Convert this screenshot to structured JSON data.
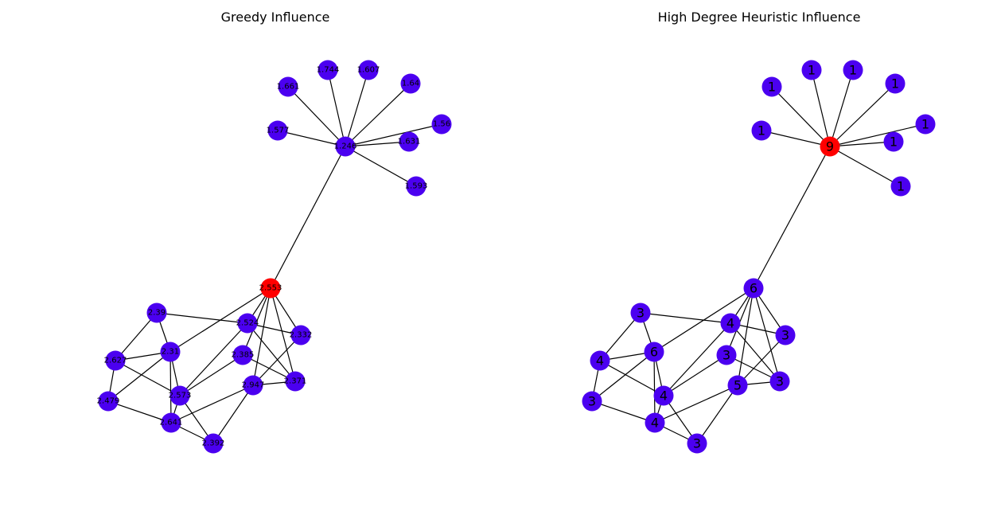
{
  "panels": [
    {
      "title": "Greedy Influence",
      "node_color": "#4b00f0",
      "highlight_color": "#ff0000",
      "highlight_node": "hub_bottom",
      "labels": {
        "hub_bottom": "2.553",
        "hub_top": "1.246",
        "t1": "1.661",
        "t2": "1.744",
        "t3": "1.607",
        "t4": "1.64",
        "t5": "1.56",
        "t6": "1.577",
        "t7": "1.631",
        "t8": "1.593",
        "b1": "2.39",
        "b2": "2.524",
        "b3": "2.332",
        "b4": "2.627",
        "b5": "2.31",
        "b6": "2.385",
        "b7": "2.371",
        "b8": "2.479",
        "b9": "2.573",
        "b10": "2.947",
        "b11": "2.641",
        "b12": "2.392"
      }
    },
    {
      "title": "High Degree Heuristic Influence",
      "node_color": "#4b00f0",
      "highlight_color": "#ff0000",
      "highlight_node": "hub_top",
      "labels": {
        "hub_bottom": "6",
        "hub_top": "9",
        "t1": "1",
        "t2": "1",
        "t3": "1",
        "t4": "1",
        "t5": "1",
        "t6": "1",
        "t7": "1",
        "t8": "1",
        "b1": "3",
        "b2": "4",
        "b3": "3",
        "b4": "4",
        "b5": "6",
        "b6": "3",
        "b7": "3",
        "b8": "3",
        "b9": "4",
        "b10": "5",
        "b11": "4",
        "b12": "3"
      }
    }
  ]
}
